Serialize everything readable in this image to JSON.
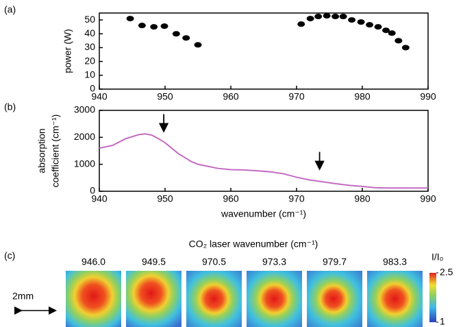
{
  "chart_data": [
    {
      "type": "scatter",
      "label": "(a)",
      "ylabel": "power (W)",
      "x": [
        944.7,
        946.5,
        948.3,
        949.9,
        951.7,
        953.2,
        955,
        970.7,
        972.1,
        973.3,
        974.6,
        975.9,
        977.1,
        978.4,
        979.8,
        981.1,
        982.4,
        983.6,
        984.5,
        985.5,
        986.6
      ],
      "values": [
        51,
        46,
        45,
        45.5,
        40,
        37,
        32,
        47,
        51,
        52.5,
        53,
        52.5,
        52.5,
        50,
        48.5,
        46.5,
        45,
        42.5,
        40.5,
        35,
        30
      ],
      "color": "#000000",
      "xlim": [
        940,
        990
      ],
      "xticks": [
        940,
        950,
        960,
        970,
        980,
        990
      ],
      "ylim": [
        0,
        55
      ],
      "yticks": [
        0,
        10,
        20,
        30,
        40,
        50
      ]
    },
    {
      "type": "line",
      "label": "(b)",
      "ylabel": [
        "absorption",
        "coefficient (cm⁻¹)"
      ],
      "xlabel": "wavenumber (cm⁻¹)",
      "x": [
        940,
        942,
        944,
        946,
        947,
        948,
        949,
        950,
        951,
        952,
        953,
        954,
        955,
        956,
        958,
        960,
        962,
        964,
        966,
        968,
        970,
        972,
        974,
        976,
        978,
        980,
        982,
        984,
        986,
        988,
        990
      ],
      "values": [
        1600,
        1700,
        1950,
        2100,
        2130,
        2080,
        1950,
        1800,
        1600,
        1400,
        1250,
        1100,
        1000,
        950,
        850,
        800,
        790,
        760,
        720,
        650,
        520,
        420,
        350,
        280,
        220,
        180,
        130,
        120,
        120,
        120,
        120
      ],
      "color": "#c26bc2",
      "arrows": [
        949.8,
        973.5
      ],
      "xlim": [
        940,
        990
      ],
      "xticks": [
        940,
        950,
        960,
        970,
        980,
        990
      ],
      "ylim": [
        0,
        3000
      ],
      "yticks": [
        0,
        1000,
        2000,
        3000
      ]
    },
    {
      "type": "image",
      "label": "(c)",
      "title": "CO₂ laser wavenumber (cm⁻¹)",
      "images": [
        "946.0",
        "949.5",
        "970.5",
        "973.3",
        "979.7",
        "983.3"
      ],
      "scale_bar": "2mm",
      "colorbar": {
        "label": "I/I₀",
        "clim": [
          1,
          2.5
        ],
        "ticks": [
          1,
          2.5
        ]
      }
    }
  ]
}
